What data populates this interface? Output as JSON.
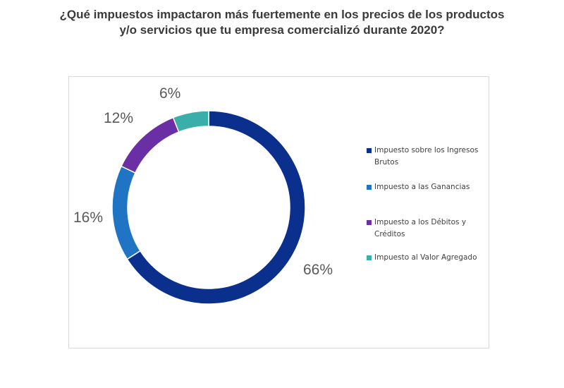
{
  "title": {
    "line1": "¿Qué impuestos impactaron más fuertemente en los precios de los productos",
    "line2": "y/o servicios que tu empresa comercializó durante 2020?"
  },
  "chart_data": {
    "type": "pie",
    "subtype": "donut",
    "title": "¿Qué impuestos impactaron más fuertemente en los precios de los productos y/o servicios que tu empresa comercializó durante 2020?",
    "categories": [
      "Impuesto sobre los Ingresos Brutos",
      "Impuesto a las Ganancias",
      "Impuesto a los Débitos y Créditos",
      "Impuesto al Valor Agregado"
    ],
    "values": [
      66,
      16,
      12,
      6
    ],
    "labels": [
      "66%",
      "16%",
      "12%",
      "6%"
    ],
    "colors": [
      "#0a2f8c",
      "#1f74c4",
      "#6b2fa5",
      "#3aafa9"
    ],
    "legend_position": "right"
  }
}
